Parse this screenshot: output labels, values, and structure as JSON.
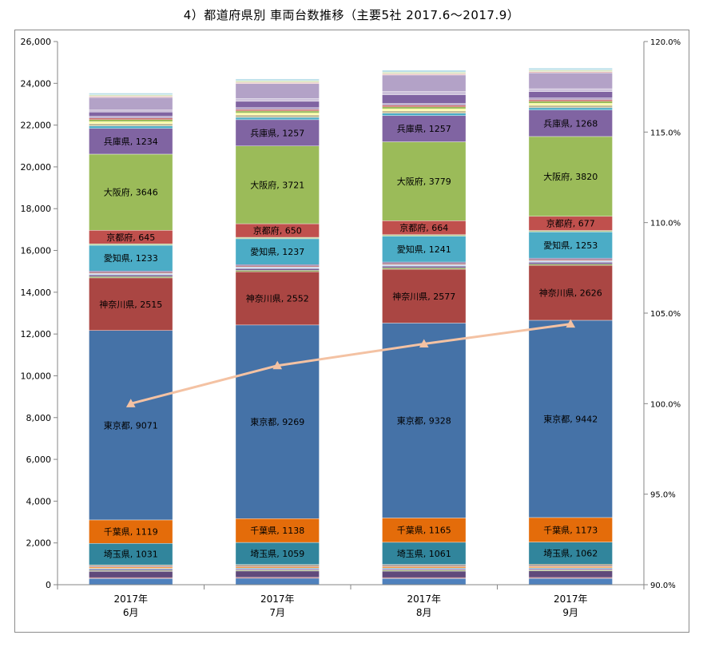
{
  "chart_data": {
    "type": "bar",
    "stacked": true,
    "title": "4）都道府県別 車両台数推移（主要5社 2017.6～2017.9）",
    "categories": [
      "2017年\n6月",
      "2017年\n7月",
      "2017年\n8月",
      "2017年\n9月"
    ],
    "y_left": {
      "range": [
        0,
        26000
      ],
      "ticks": [
        "0",
        "2,000",
        "4,000",
        "6,000",
        "8,000",
        "10,000",
        "12,000",
        "14,000",
        "16,000",
        "18,000",
        "20,000",
        "22,000",
        "24,000",
        "26,000"
      ]
    },
    "y_right": {
      "range": [
        90,
        120
      ],
      "ticks": [
        "90.0%",
        "95.0%",
        "100.0%",
        "105.0%",
        "110.0%",
        "115.0%",
        "120.0%"
      ]
    },
    "grid": false,
    "legend": "none",
    "series": [
      {
        "color": "#4f81bd",
        "values": [
          300,
          310,
          300,
          305
        ]
      },
      {
        "color": "#c0504d",
        "values": [
          40,
          40,
          40,
          40
        ]
      },
      {
        "color": "#604a7b",
        "values": [
          300,
          305,
          310,
          315
        ]
      },
      {
        "color": "#9bbb59",
        "values": [
          40,
          40,
          45,
          45
        ]
      },
      {
        "color": "#8064a2",
        "values": [
          60,
          60,
          60,
          60
        ]
      },
      {
        "color": "#4bacc6",
        "values": [
          40,
          40,
          40,
          40
        ]
      },
      {
        "color": "#f79646",
        "values": [
          70,
          70,
          75,
          75
        ]
      },
      {
        "color": "#2c4d75",
        "values": [
          30,
          30,
          30,
          30
        ]
      },
      {
        "color": "#772c2a",
        "values": [
          40,
          40,
          40,
          40
        ]
      },
      {
        "color": "#5f7530",
        "values": [
          30,
          30,
          30,
          30
        ]
      },
      {
        "name": "埼玉県",
        "color": "#31859c",
        "values": [
          1031,
          1059,
          1061,
          1062
        ]
      },
      {
        "name": "千葉県",
        "color": "#e46c0a",
        "values": [
          1119,
          1138,
          1165,
          1173
        ]
      },
      {
        "name": "東京都",
        "color": "#4572a7",
        "values": [
          9071,
          9269,
          9328,
          9442
        ]
      },
      {
        "name": "神奈川県",
        "color": "#aa4643",
        "values": [
          2515,
          2552,
          2577,
          2626
        ]
      },
      {
        "color": "#89a54e",
        "values": [
          60,
          65,
          65,
          65
        ]
      },
      {
        "color": "#71588f",
        "values": [
          80,
          85,
          85,
          85
        ]
      },
      {
        "color": "#c6d9f1",
        "values": [
          70,
          70,
          70,
          75
        ]
      },
      {
        "color": "#bf7b7b",
        "values": [
          60,
          60,
          60,
          60
        ]
      },
      {
        "color": "#71588f",
        "values": [
          60,
          60,
          65,
          65
        ]
      },
      {
        "name": "愛知県",
        "color": "#4bacc6",
        "values": [
          1233,
          1237,
          1241,
          1253
        ]
      },
      {
        "color": "#b5ca92",
        "values": [
          70,
          70,
          70,
          70
        ]
      },
      {
        "name": "京都府",
        "color": "#c0504d",
        "values": [
          645,
          650,
          664,
          677
        ]
      },
      {
        "name": "大阪府",
        "color": "#9bbb59",
        "values": [
          3646,
          3721,
          3779,
          3820
        ]
      },
      {
        "name": "兵庫県",
        "color": "#8064a2",
        "values": [
          1234,
          1257,
          1257,
          1268
        ]
      },
      {
        "color": "#4bacc6",
        "values": [
          110,
          110,
          110,
          110
        ]
      },
      {
        "color": "#c4bd97",
        "values": [
          120,
          120,
          120,
          120
        ]
      },
      {
        "color": "#ffff99",
        "values": [
          90,
          90,
          90,
          90
        ]
      },
      {
        "color": "#9bbb59",
        "values": [
          100,
          100,
          100,
          100
        ]
      },
      {
        "color": "#c0504d",
        "values": [
          70,
          70,
          70,
          70
        ]
      },
      {
        "color": "#b3a2c7",
        "values": [
          90,
          90,
          90,
          90
        ]
      },
      {
        "color": "#8064a2",
        "values": [
          200,
          300,
          420,
          300
        ]
      },
      {
        "color": "#ccc1da",
        "values": [
          100,
          130,
          150,
          140
        ]
      },
      {
        "color": "#b3a2c7",
        "values": [
          600,
          720,
          790,
          760
        ]
      },
      {
        "color": "#e6b9b8",
        "values": [
          60,
          60,
          60,
          60
        ]
      },
      {
        "color": "#d7e4bd",
        "values": [
          70,
          80,
          80,
          80
        ]
      },
      {
        "color": "#b7dee8",
        "values": [
          80,
          80,
          90,
          90
        ]
      }
    ],
    "line_series": {
      "axis": "right",
      "color": "#f4c2a3",
      "values": [
        100.0,
        102.1,
        103.3,
        104.4
      ]
    }
  }
}
